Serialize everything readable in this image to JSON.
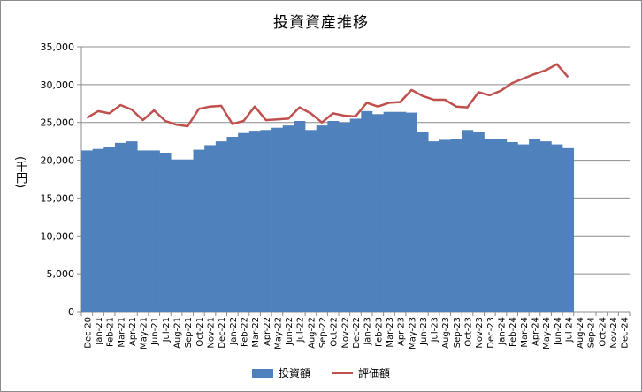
{
  "chart_data": {
    "type": "bar",
    "title": "投資資産推移",
    "ylabel": "(千円)",
    "xlabel": "",
    "ylim": [
      0,
      35000
    ],
    "yticks": [
      0,
      5000,
      10000,
      15000,
      20000,
      25000,
      30000,
      35000
    ],
    "ytick_labels": [
      "0",
      "5,000",
      "10,000",
      "15,000",
      "20,000",
      "25,000",
      "30,000",
      "35,000"
    ],
    "grid": true,
    "legend_position": "bottom",
    "categories": [
      "Dec-20",
      "Jan-21",
      "Feb-21",
      "Mar-21",
      "Apr-21",
      "May-21",
      "Jun-21",
      "Jul-21",
      "Aug-21",
      "Sep-21",
      "Oct-21",
      "Nov-21",
      "Dec-21",
      "Jan-22",
      "Feb-22",
      "Mar-22",
      "Apr-22",
      "May-22",
      "Jun-22",
      "Jul-22",
      "Aug-22",
      "Sep-22",
      "Oct-22",
      "Nov-22",
      "Dec-22",
      "Jan-23",
      "Feb-23",
      "Mar-23",
      "Apr-23",
      "May-23",
      "Jun-23",
      "Jul-23",
      "Aug-23",
      "Sep-23",
      "Oct-23",
      "Nov-23",
      "Dec-23",
      "Jan-24",
      "Feb-24",
      "Mar-24",
      "Apr-24",
      "May-24",
      "Jun-24",
      "Jul-24",
      "Aug-24",
      "Sep-24",
      "Oct-24",
      "Nov-24",
      "Dec-24"
    ],
    "series": [
      {
        "name": "投資額",
        "kind": "bar",
        "color": "#4f81bd",
        "values": [
          21300,
          21500,
          21800,
          22300,
          22500,
          21300,
          21300,
          21000,
          20100,
          20100,
          21400,
          22000,
          22500,
          23100,
          23600,
          23900,
          24000,
          24300,
          24600,
          25200,
          24000,
          24600,
          25200,
          25000,
          25500,
          26500,
          26100,
          26400,
          26400,
          26300,
          23800,
          22500,
          22700,
          22800,
          24000,
          23700,
          22800,
          22800,
          22400,
          22100,
          22800,
          22500,
          22100,
          21600,
          null,
          null,
          null,
          null,
          null
        ]
      },
      {
        "name": "評価額",
        "kind": "line",
        "color": "#c0504d",
        "values": [
          25600,
          26500,
          26200,
          27300,
          26700,
          25300,
          26600,
          25200,
          24700,
          24500,
          26800,
          27100,
          27200,
          24800,
          25200,
          27100,
          25300,
          25400,
          25500,
          27000,
          26200,
          25000,
          26200,
          25900,
          25800,
          27600,
          27100,
          27600,
          27700,
          29300,
          28500,
          28000,
          28000,
          27100,
          27000,
          29000,
          28600,
          29200,
          30200,
          30800,
          31400,
          31900,
          32700,
          31000,
          null,
          null,
          null,
          null,
          null
        ]
      }
    ]
  }
}
